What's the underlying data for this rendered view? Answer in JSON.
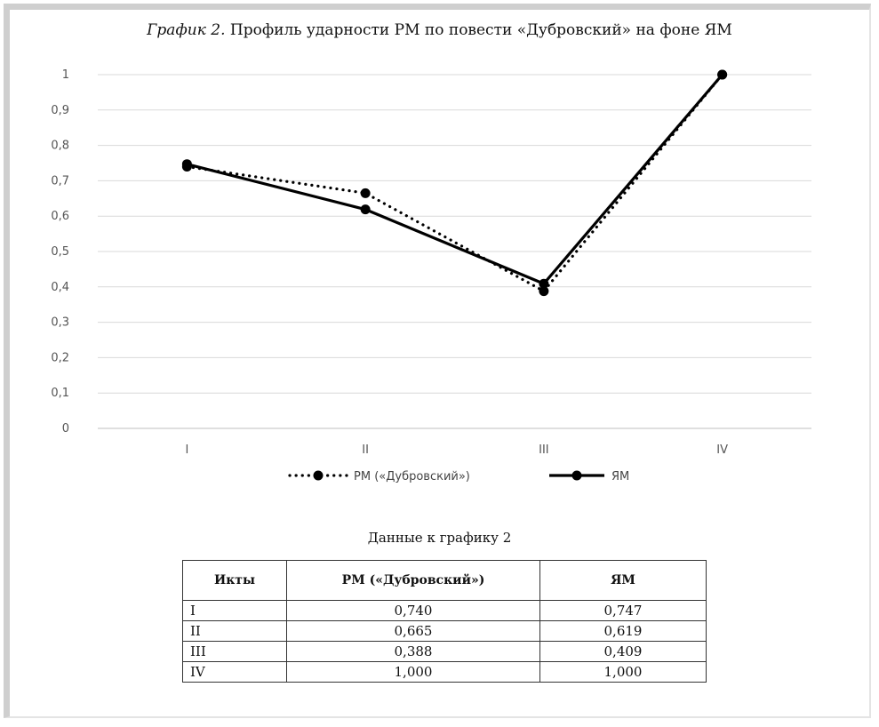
{
  "chart_data": {
    "type": "line",
    "title_prefix": "График 2.",
    "title_text": " Профиль ударности РМ по повести «Дубровский» на фоне ЯМ",
    "categories": [
      "I",
      "II",
      "III",
      "IV"
    ],
    "y_ticks": [
      "0",
      "0,1",
      "0,2",
      "0,3",
      "0,4",
      "0,5",
      "0,6",
      "0,7",
      "0,8",
      "0,9",
      "1"
    ],
    "ylim": [
      0,
      1
    ],
    "grid": true,
    "legend_position": "bottom",
    "series": [
      {
        "name": "РМ («Дубровский»)",
        "values": [
          0.74,
          0.665,
          0.388,
          1.0
        ],
        "style": "dotted",
        "color": "#000000"
      },
      {
        "name": "ЯМ",
        "values": [
          0.747,
          0.619,
          0.409,
          1.0
        ],
        "style": "solid",
        "color": "#000000"
      }
    ]
  },
  "table": {
    "caption": "Данные к графику 2",
    "headers": [
      "Икты",
      "РМ («Дубровский»)",
      "ЯМ"
    ],
    "rows": [
      [
        "I",
        "0,740",
        "0,747"
      ],
      [
        "II",
        "0,665",
        "0,619"
      ],
      [
        "III",
        "0,388",
        "0,409"
      ],
      [
        "IV",
        "1,000",
        "1,000"
      ]
    ]
  }
}
